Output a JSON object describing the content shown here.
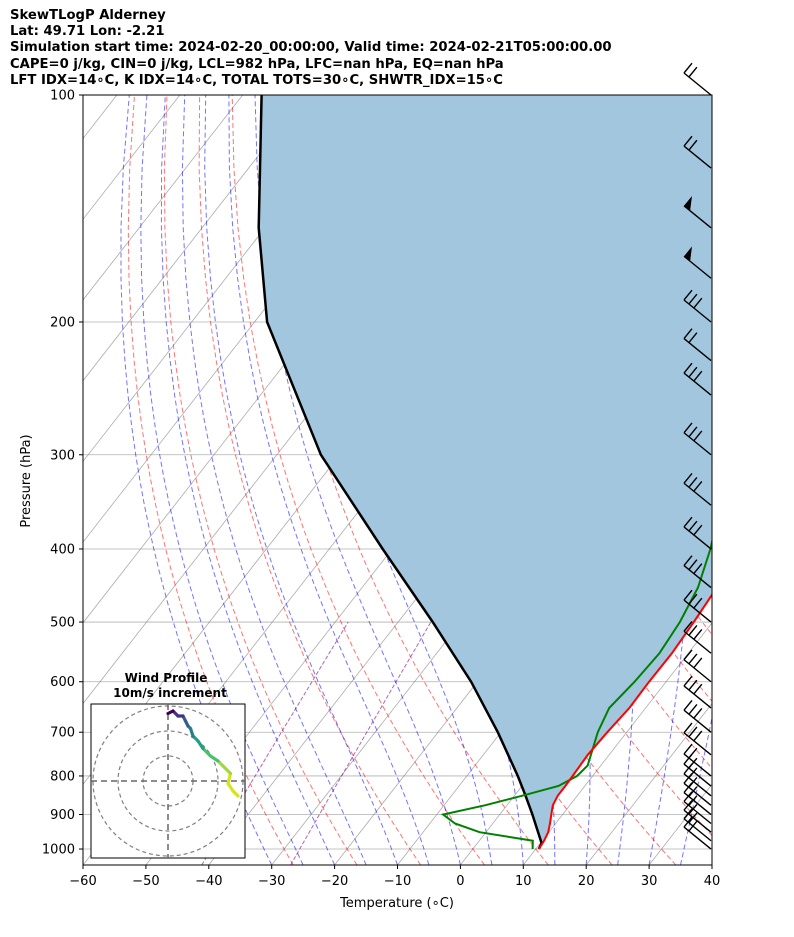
{
  "titles": {
    "line1": "SkewTLogP Alderney",
    "line2": "Lat: 49.71   Lon: -2.21",
    "line3": "Simulation start time: 2024-02-20_00:00:00, Valid time: 2024-02-21T05:00:00.00",
    "line4": "CAPE=0 j/kg, CIN=0 j/kg, LCL=982 hPa, LFC=nan hPa, EQ=nan hPa",
    "line5": "LFT IDX=14∘C, K IDX=14∘C, TOTAL TOTS=30∘C, SHWTR_IDX=15∘C"
  },
  "chart_data": [
    {
      "type": "line",
      "chart": "skew-t log-p diagram",
      "xlabel": "Temperature (∘C)",
      "ylabel": "Pressure (hPa)",
      "x_ticks": [
        "−60",
        "−50",
        "−40",
        "−30",
        "−20",
        "−10",
        "0",
        "10",
        "20",
        "30",
        "40"
      ],
      "y_ticks": [
        "100",
        "200",
        "300",
        "400",
        "500",
        "600",
        "700",
        "800",
        "900",
        "1000"
      ],
      "x_tick_values": [
        -60,
        -50,
        -40,
        -30,
        -20,
        -10,
        0,
        10,
        20,
        30,
        40
      ],
      "y_tick_values": [
        100,
        200,
        300,
        400,
        500,
        600,
        700,
        800,
        900,
        1000
      ],
      "xlim": [
        -60,
        40
      ],
      "ylim": [
        1050,
        100
      ],
      "y_scale": "log",
      "grid": true,
      "series": [
        {
          "role": "temperature",
          "color": "#ff0000",
          "points": [
            [
              1000,
              10.5
            ],
            [
              975,
              10.3
            ],
            [
              950,
              9.9
            ],
            [
              925,
              9.1
            ],
            [
              900,
              8.2
            ],
            [
              875,
              7.3
            ],
            [
              850,
              6.9
            ],
            [
              825,
              6.9
            ],
            [
              800,
              6.8
            ],
            [
              750,
              6.6
            ],
            [
              700,
              6.9
            ],
            [
              650,
              7.4
            ],
            [
              600,
              7.3
            ],
            [
              550,
              7.4
            ],
            [
              500,
              7.0
            ],
            [
              450,
              6.4
            ],
            [
              400,
              4.4
            ],
            [
              350,
              1.8
            ],
            [
              300,
              -2.1
            ],
            [
              250,
              -8.0
            ],
            [
              200,
              -16.0
            ],
            [
              180,
              -16.9
            ],
            [
              170,
              -15.8
            ],
            [
              160,
              -13.6
            ],
            [
              150,
              -13.7
            ],
            [
              140,
              -17.5
            ],
            [
              130,
              -23.2
            ],
            [
              120,
              -29.9
            ],
            [
              110,
              -31.0
            ],
            [
              100,
              -37.0
            ]
          ]
        },
        {
          "role": "dewpoint",
          "color": "#008000",
          "points": [
            [
              1000,
              9.5
            ],
            [
              975,
              8.5
            ],
            [
              950,
              -1.0
            ],
            [
              925,
              -6.0
            ],
            [
              900,
              -9.0
            ],
            [
              875,
              -3.5
            ],
            [
              850,
              1.2
            ],
            [
              825,
              5.8
            ],
            [
              800,
              7.5
            ],
            [
              775,
              7.9
            ],
            [
              750,
              7.1
            ],
            [
              700,
              5.4
            ],
            [
              650,
              4.2
            ],
            [
              600,
              5.0
            ],
            [
              550,
              5.4
            ],
            [
              500,
              4.8
            ],
            [
              450,
              3.4
            ],
            [
              400,
              0.6
            ],
            [
              350,
              -3.2
            ],
            [
              300,
              -7.0
            ],
            [
              250,
              -13.4
            ],
            [
              230,
              -16.8
            ],
            [
              200,
              -22.0
            ],
            [
              185,
              -25.6
            ],
            [
              175,
              -23.3
            ],
            [
              160,
              -23.1
            ],
            [
              150,
              -23.9
            ],
            [
              140,
              -28.2
            ],
            [
              130,
              -30.6
            ],
            [
              115,
              -38.5
            ],
            [
              100,
              -42.0
            ]
          ]
        },
        {
          "role": "parcel",
          "color": "#000000",
          "points": [
            [
              1000,
              10.5
            ],
            [
              982,
              10.2
            ],
            [
              950,
              8.3
            ],
            [
              900,
              5.2
            ],
            [
              850,
              1.8
            ],
            [
              800,
              -1.9
            ],
            [
              700,
              -10.5
            ],
            [
              600,
              -21.0
            ],
            [
              500,
              -34.5
            ],
            [
              400,
              -51.5
            ],
            [
              300,
              -73.0
            ],
            [
              200,
              -98.0
            ],
            [
              150,
              -111.0
            ],
            [
              100,
              -127.0
            ]
          ]
        }
      ],
      "shaded_region": {
        "between": [
          "temperature",
          "parcel"
        ],
        "color": "#a2c6de"
      },
      "reference_lines": {
        "dry_adiabats_color": "#ff0000",
        "moist_adiabats_color": "#0000ff",
        "mixing_ratio_color": "#800080",
        "isotherm_color": "#808080"
      },
      "wind_barbs": {
        "color": "#000000",
        "pressures": [
          1000,
          975,
          950,
          925,
          900,
          875,
          850,
          825,
          800,
          750,
          700,
          650,
          600,
          550,
          500,
          450,
          400,
          350,
          300,
          250,
          225,
          200,
          175,
          150,
          125,
          100
        ]
      }
    },
    {
      "type": "line",
      "chart": "hodograph",
      "title": "Wind Profile",
      "subtitle": "10m/s increment",
      "ring_increment": 10,
      "colormap": "viridis",
      "points": [
        [
          28,
          -6
        ],
        [
          26,
          -4
        ],
        [
          24,
          -1
        ],
        [
          25,
          3
        ],
        [
          22,
          6
        ],
        [
          20,
          8
        ],
        [
          17,
          10
        ],
        [
          14,
          13
        ],
        [
          12,
          16
        ],
        [
          10,
          18
        ],
        [
          9,
          21
        ],
        [
          8,
          22
        ],
        [
          7,
          24
        ],
        [
          6,
          26
        ],
        [
          4,
          26
        ],
        [
          2,
          28
        ],
        [
          0,
          27
        ]
      ]
    }
  ]
}
